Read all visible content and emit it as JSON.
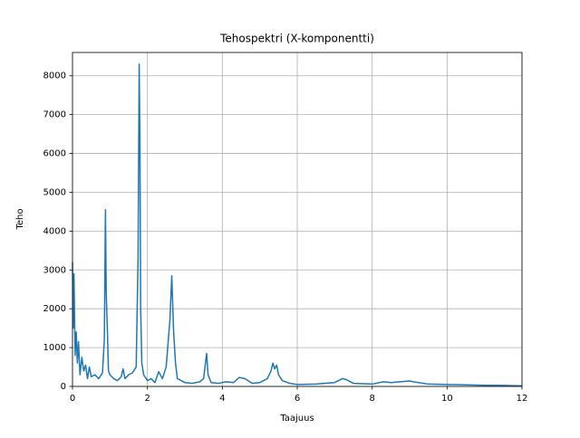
{
  "chart_data": {
    "type": "line",
    "title": "Tehospektri (X-komponentti)",
    "xlabel": "Taajuus",
    "ylabel": "Teho",
    "x": [
      0,
      0.02,
      0.04,
      0.07,
      0.1,
      0.13,
      0.16,
      0.2,
      0.25,
      0.3,
      0.35,
      0.4,
      0.45,
      0.5,
      0.6,
      0.7,
      0.8,
      0.85,
      0.88,
      0.9,
      0.93,
      0.96,
      1.0,
      1.1,
      1.2,
      1.3,
      1.35,
      1.4,
      1.5,
      1.6,
      1.7,
      1.75,
      1.78,
      1.8,
      1.82,
      1.85,
      1.9,
      2.0,
      2.1,
      2.2,
      2.3,
      2.4,
      2.5,
      2.6,
      2.65,
      2.7,
      2.75,
      2.8,
      2.9,
      3.0,
      3.2,
      3.4,
      3.5,
      3.58,
      3.62,
      3.7,
      3.9,
      4.1,
      4.3,
      4.45,
      4.6,
      4.8,
      5.0,
      5.2,
      5.3,
      5.35,
      5.4,
      5.45,
      5.5,
      5.6,
      5.8,
      6.0,
      6.5,
      7.0,
      7.2,
      7.3,
      7.5,
      8.0,
      8.3,
      8.5,
      9.0,
      9.1,
      9.5,
      10.0,
      10.5,
      11.0,
      11.5,
      12.0
    ],
    "values": [
      3200,
      1500,
      2900,
      800,
      1400,
      600,
      1150,
      300,
      750,
      400,
      550,
      200,
      500,
      250,
      300,
      200,
      350,
      1200,
      4550,
      2400,
      1500,
      400,
      300,
      200,
      150,
      250,
      450,
      200,
      300,
      350,
      500,
      3250,
      8300,
      6300,
      2000,
      600,
      300,
      150,
      200,
      100,
      380,
      200,
      500,
      1700,
      2850,
      1400,
      600,
      200,
      150,
      100,
      80,
      120,
      200,
      850,
      300,
      100,
      80,
      120,
      100,
      230,
      200,
      80,
      100,
      200,
      400,
      600,
      450,
      550,
      300,
      150,
      80,
      50,
      60,
      100,
      200,
      180,
      80,
      60,
      120,
      100,
      140,
      120,
      60,
      50,
      40,
      30,
      25,
      15
    ],
    "color": "#1f77b4",
    "xlim": [
      0,
      12
    ],
    "xticks": [
      0,
      2,
      4,
      6,
      8,
      10,
      12
    ],
    "ylim": [
      0,
      8600
    ],
    "yticks": [
      0,
      1000,
      2000,
      3000,
      4000,
      5000,
      6000,
      7000,
      8000
    ],
    "grid": true
  }
}
